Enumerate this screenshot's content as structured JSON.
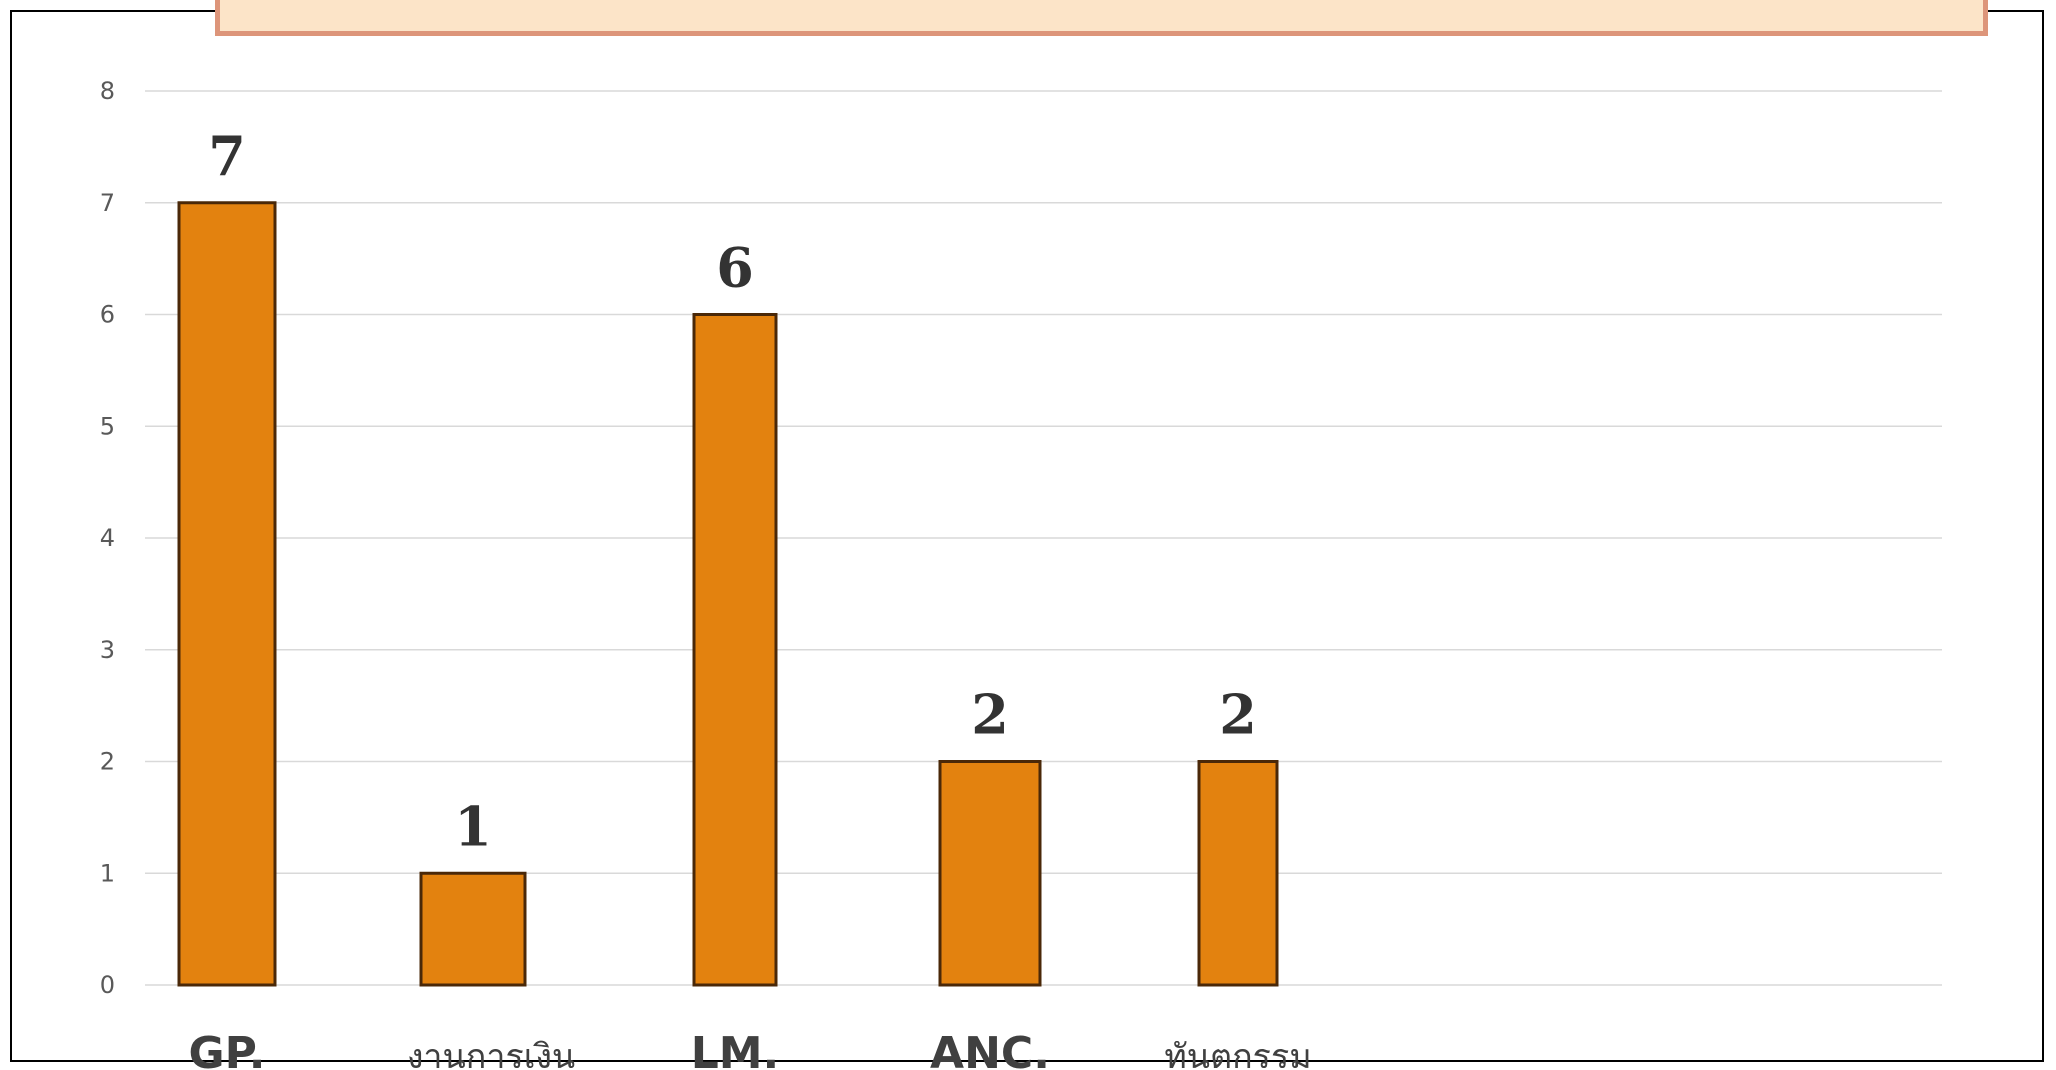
{
  "chart_data": {
    "type": "bar",
    "title": "",
    "categories": [
      "GP.",
      "งานการเงิน",
      "LM.",
      "ANC.",
      "ทันตกรรม"
    ],
    "values": [
      7,
      1,
      6,
      2,
      2
    ],
    "data_labels": [
      "7",
      "1",
      "6",
      "2",
      "2"
    ],
    "y_ticks": [
      "0",
      "1",
      "2",
      "3",
      "4",
      "5",
      "6",
      "7",
      "8"
    ],
    "ylim": [
      0,
      8
    ],
    "xlabel": "",
    "ylabel": "",
    "grid": true,
    "bar_color": "#e3820f",
    "bar_border_color": "#4a2808",
    "title_bg_color": "#fce4c8",
    "title_border_color": "#dd957a"
  }
}
